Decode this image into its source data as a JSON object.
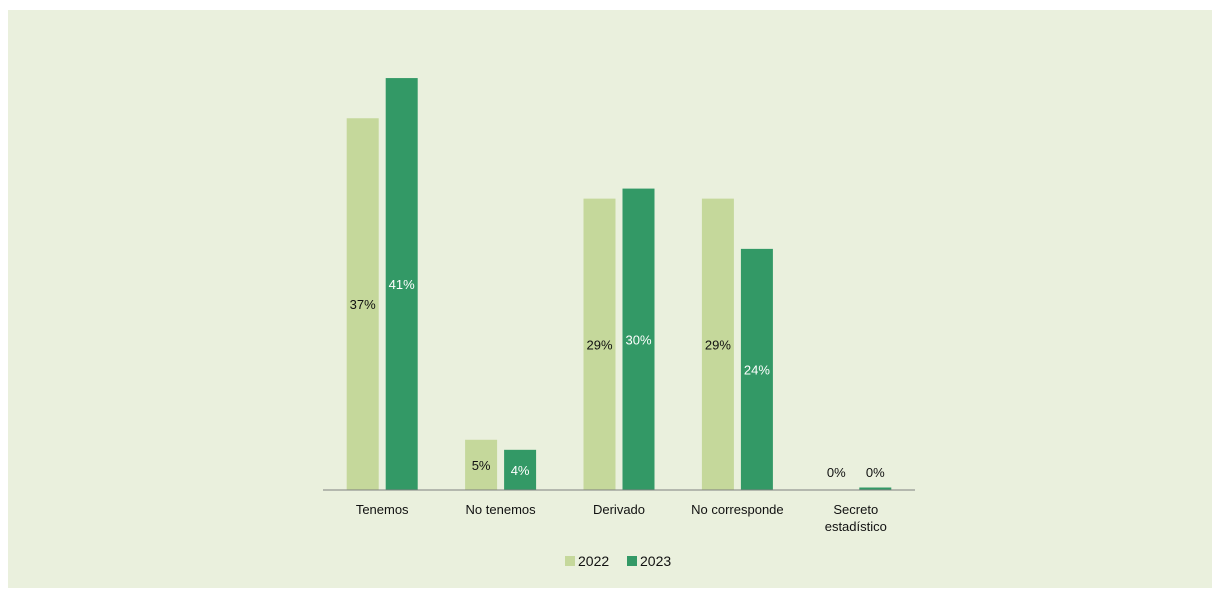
{
  "chart_data": {
    "type": "bar",
    "title": "",
    "xlabel": "",
    "ylabel": "",
    "ylim": [
      0,
      42.5
    ],
    "grid": false,
    "legend_position": "bottom",
    "categories": [
      [
        "Tenemos"
      ],
      [
        "No tenemos"
      ],
      [
        "Derivado"
      ],
      [
        "No corresponde"
      ],
      [
        "Secreto",
        "estadístico"
      ]
    ],
    "series": [
      {
        "name": "2022",
        "color": "#c5d89b",
        "values": [
          37,
          5,
          29,
          29,
          0
        ],
        "labels": [
          "37%",
          "5%",
          "29%",
          "29%",
          "0%"
        ],
        "label_color": "#111111"
      },
      {
        "name": "2023",
        "color": "#339966",
        "values": [
          41,
          4,
          30,
          24,
          0
        ],
        "labels": [
          "41%",
          "4%",
          "30%",
          "24%",
          "0%"
        ],
        "label_color": "#ffffff"
      }
    ]
  }
}
